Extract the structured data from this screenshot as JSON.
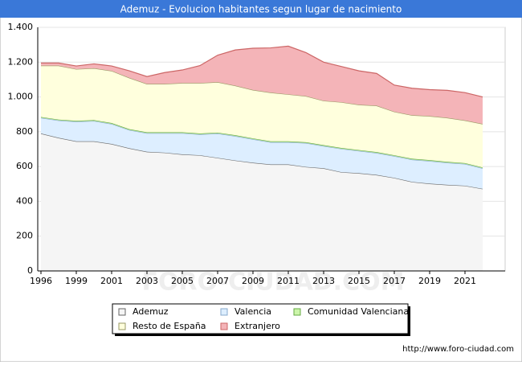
{
  "chart_data": {
    "type": "stacked-area",
    "title": "Ademuz - Evolucion habitantes segun lugar de nacimiento",
    "source": "http://www.foro-ciudad.com",
    "watermark": "FORO-CIUDAD.COM",
    "categories": [
      "1996",
      null,
      "1999",
      null,
      "2001",
      null,
      "2003",
      null,
      "2005",
      null,
      "2007",
      null,
      "2009",
      null,
      "2011",
      null,
      "2013",
      null,
      "2015",
      null,
      "2017",
      null,
      "2019",
      null,
      "2021",
      null
    ],
    "ylim": [
      0,
      1400
    ],
    "yticks": [
      0,
      200,
      400,
      600,
      800,
      {
        "value": 1000,
        "label": "1.000"
      },
      {
        "value": 1200,
        "label": "1.200"
      },
      {
        "value": 1400,
        "label": "1.400"
      }
    ],
    "grid": true,
    "series": [
      {
        "name": "Ademuz",
        "color": "#f5f5f5",
        "line": "#666666",
        "values": [
          790,
          765,
          745,
          745,
          730,
          705,
          685,
          680,
          670,
          665,
          650,
          635,
          622,
          612,
          612,
          598,
          590,
          568,
          562,
          552,
          535,
          512,
          502,
          495,
          490,
          472
        ]
      },
      {
        "name": "Valencia",
        "color": "#ddeeff",
        "line": "#88aacc",
        "values": [
          90,
          100,
          113,
          117,
          115,
          105,
          107,
          112,
          122,
          120,
          140,
          140,
          135,
          128,
          128,
          137,
          128,
          134,
          128,
          126,
          125,
          128,
          130,
          127,
          125,
          118
        ]
      },
      {
        "name": "Comunidad Valenciana",
        "color": "#ccf5aa",
        "line": "#66aa44",
        "values": [
          5,
          5,
          5,
          5,
          5,
          5,
          5,
          5,
          5,
          5,
          5,
          5,
          5,
          5,
          5,
          5,
          5,
          5,
          5,
          5,
          5,
          5,
          5,
          5,
          5,
          5
        ]
      },
      {
        "name": "Resto de España",
        "color": "#ffffdd",
        "line": "#999966",
        "values": [
          295,
          310,
          297,
          298,
          300,
          295,
          278,
          278,
          283,
          290,
          290,
          285,
          278,
          280,
          270,
          265,
          255,
          263,
          260,
          267,
          250,
          250,
          253,
          253,
          245,
          250
        ]
      },
      {
        "name": "Extranjero",
        "color": "#f4b4b8",
        "line": "#cc6666",
        "values": [
          15,
          15,
          18,
          25,
          28,
          40,
          42,
          65,
          75,
          100,
          155,
          205,
          240,
          257,
          277,
          250,
          222,
          205,
          195,
          185,
          153,
          155,
          152,
          158,
          160,
          155
        ]
      }
    ]
  }
}
